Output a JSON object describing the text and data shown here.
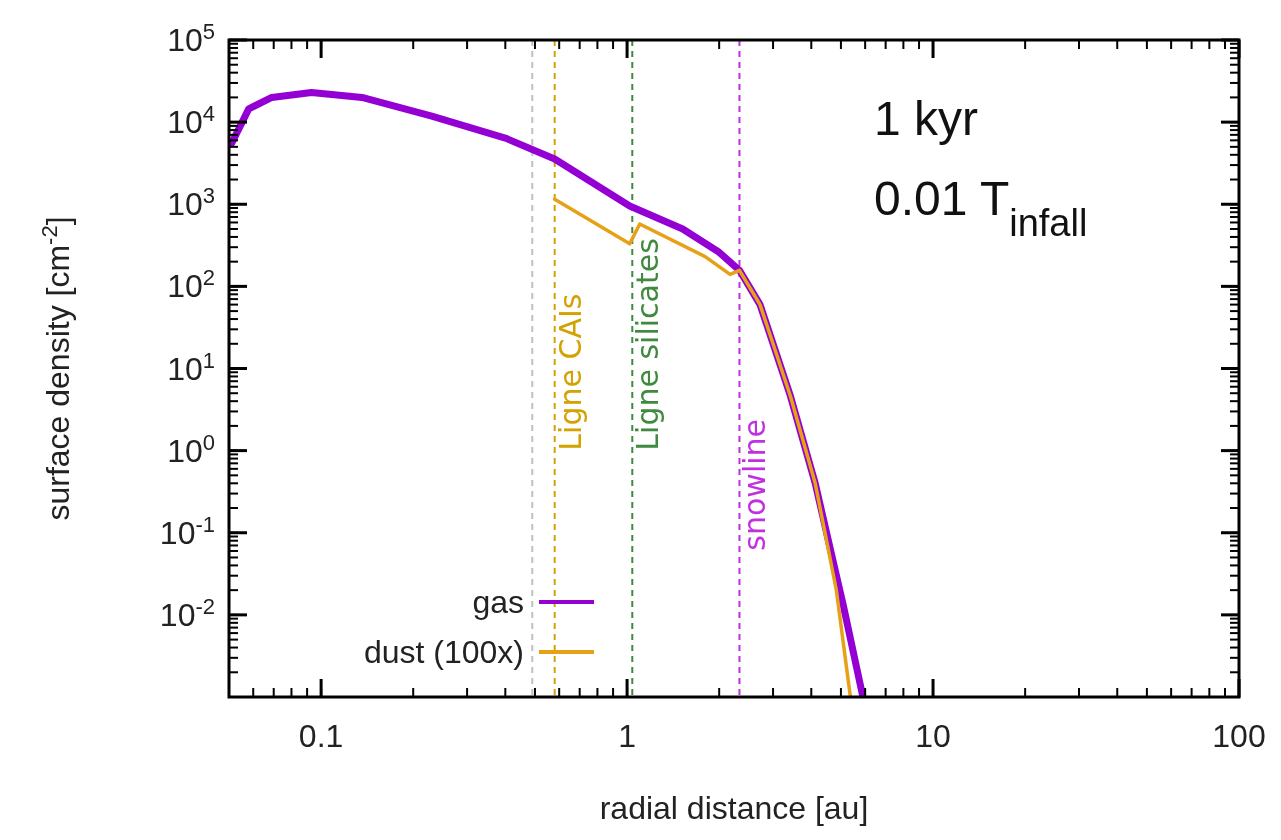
{
  "chart_data": {
    "type": "line",
    "xlabel": "radial distance [au]",
    "ylabel": "surface density [cm$^{-2}$]",
    "log": "xy",
    "xlim": [
      0.05,
      100
    ],
    "xticks": [
      0.1,
      1,
      10,
      100
    ],
    "ylim": [
      0.001,
      100000
    ],
    "yticks": [
      {
        "value": 0.01,
        "label": "10$^{-2}$"
      },
      {
        "value": 0.1,
        "label": "10$^{-1}$"
      },
      {
        "value": 1,
        "label": "10$^{0}$"
      },
      {
        "value": 10,
        "label": "10$^{1}$"
      },
      {
        "value": 100,
        "label": "10$^{2}$"
      },
      {
        "value": 1000,
        "label": "10$^{3}$"
      },
      {
        "value": 10000,
        "label": "10$^{4}$"
      },
      {
        "value": 100000,
        "label": "10$^{5}$"
      }
    ],
    "series": [
      {
        "name": "gas",
        "color": "#9400d3",
        "x": [
          0.051,
          0.058,
          0.069,
          0.093,
          0.136,
          0.23,
          0.4,
          0.58,
          1.02,
          1.52,
          2.0,
          2.33,
          2.72,
          3.42,
          4.12,
          5.1,
          5.9
        ],
        "values": [
          5500,
          14500,
          20000,
          23000,
          20000,
          11800,
          6400,
          3550,
          950,
          500,
          260,
          157,
          60,
          4.6,
          0.4,
          0.0126,
          0.001
        ]
      },
      {
        "name": "dust (100x)",
        "color": "#e6a117",
        "x": [
          0.58,
          1.02,
          1.1,
          1.8,
          2.17,
          2.33,
          2.72,
          3.42,
          4.12,
          4.83,
          5.37
        ],
        "values": [
          1150,
          330,
          575,
          230,
          140,
          157,
          60,
          4.6,
          0.4,
          0.02,
          0.001
        ]
      }
    ],
    "ref_lines": [
      {
        "axis": "x",
        "value": 0.49,
        "color": "#c0c0c0",
        "line_style": "dashed"
      },
      {
        "axis": "x",
        "value": 0.58,
        "label": "Ligne CAIs",
        "color": "#d4a200",
        "line_style": "dashed"
      },
      {
        "axis": "x",
        "value": 1.04,
        "label": "Ligne silicates",
        "color": "#3f8a3f",
        "line_style": "dashed"
      },
      {
        "axis": "x",
        "value": 2.33,
        "label": "snowline",
        "color": "#c030e0",
        "line_style": "dashed"
      }
    ],
    "annotations": [
      "1 kyr",
      "0.01 T$_{infall}$"
    ],
    "legend": "bottom left",
    "grid": false,
    "line_style": "solid"
  }
}
